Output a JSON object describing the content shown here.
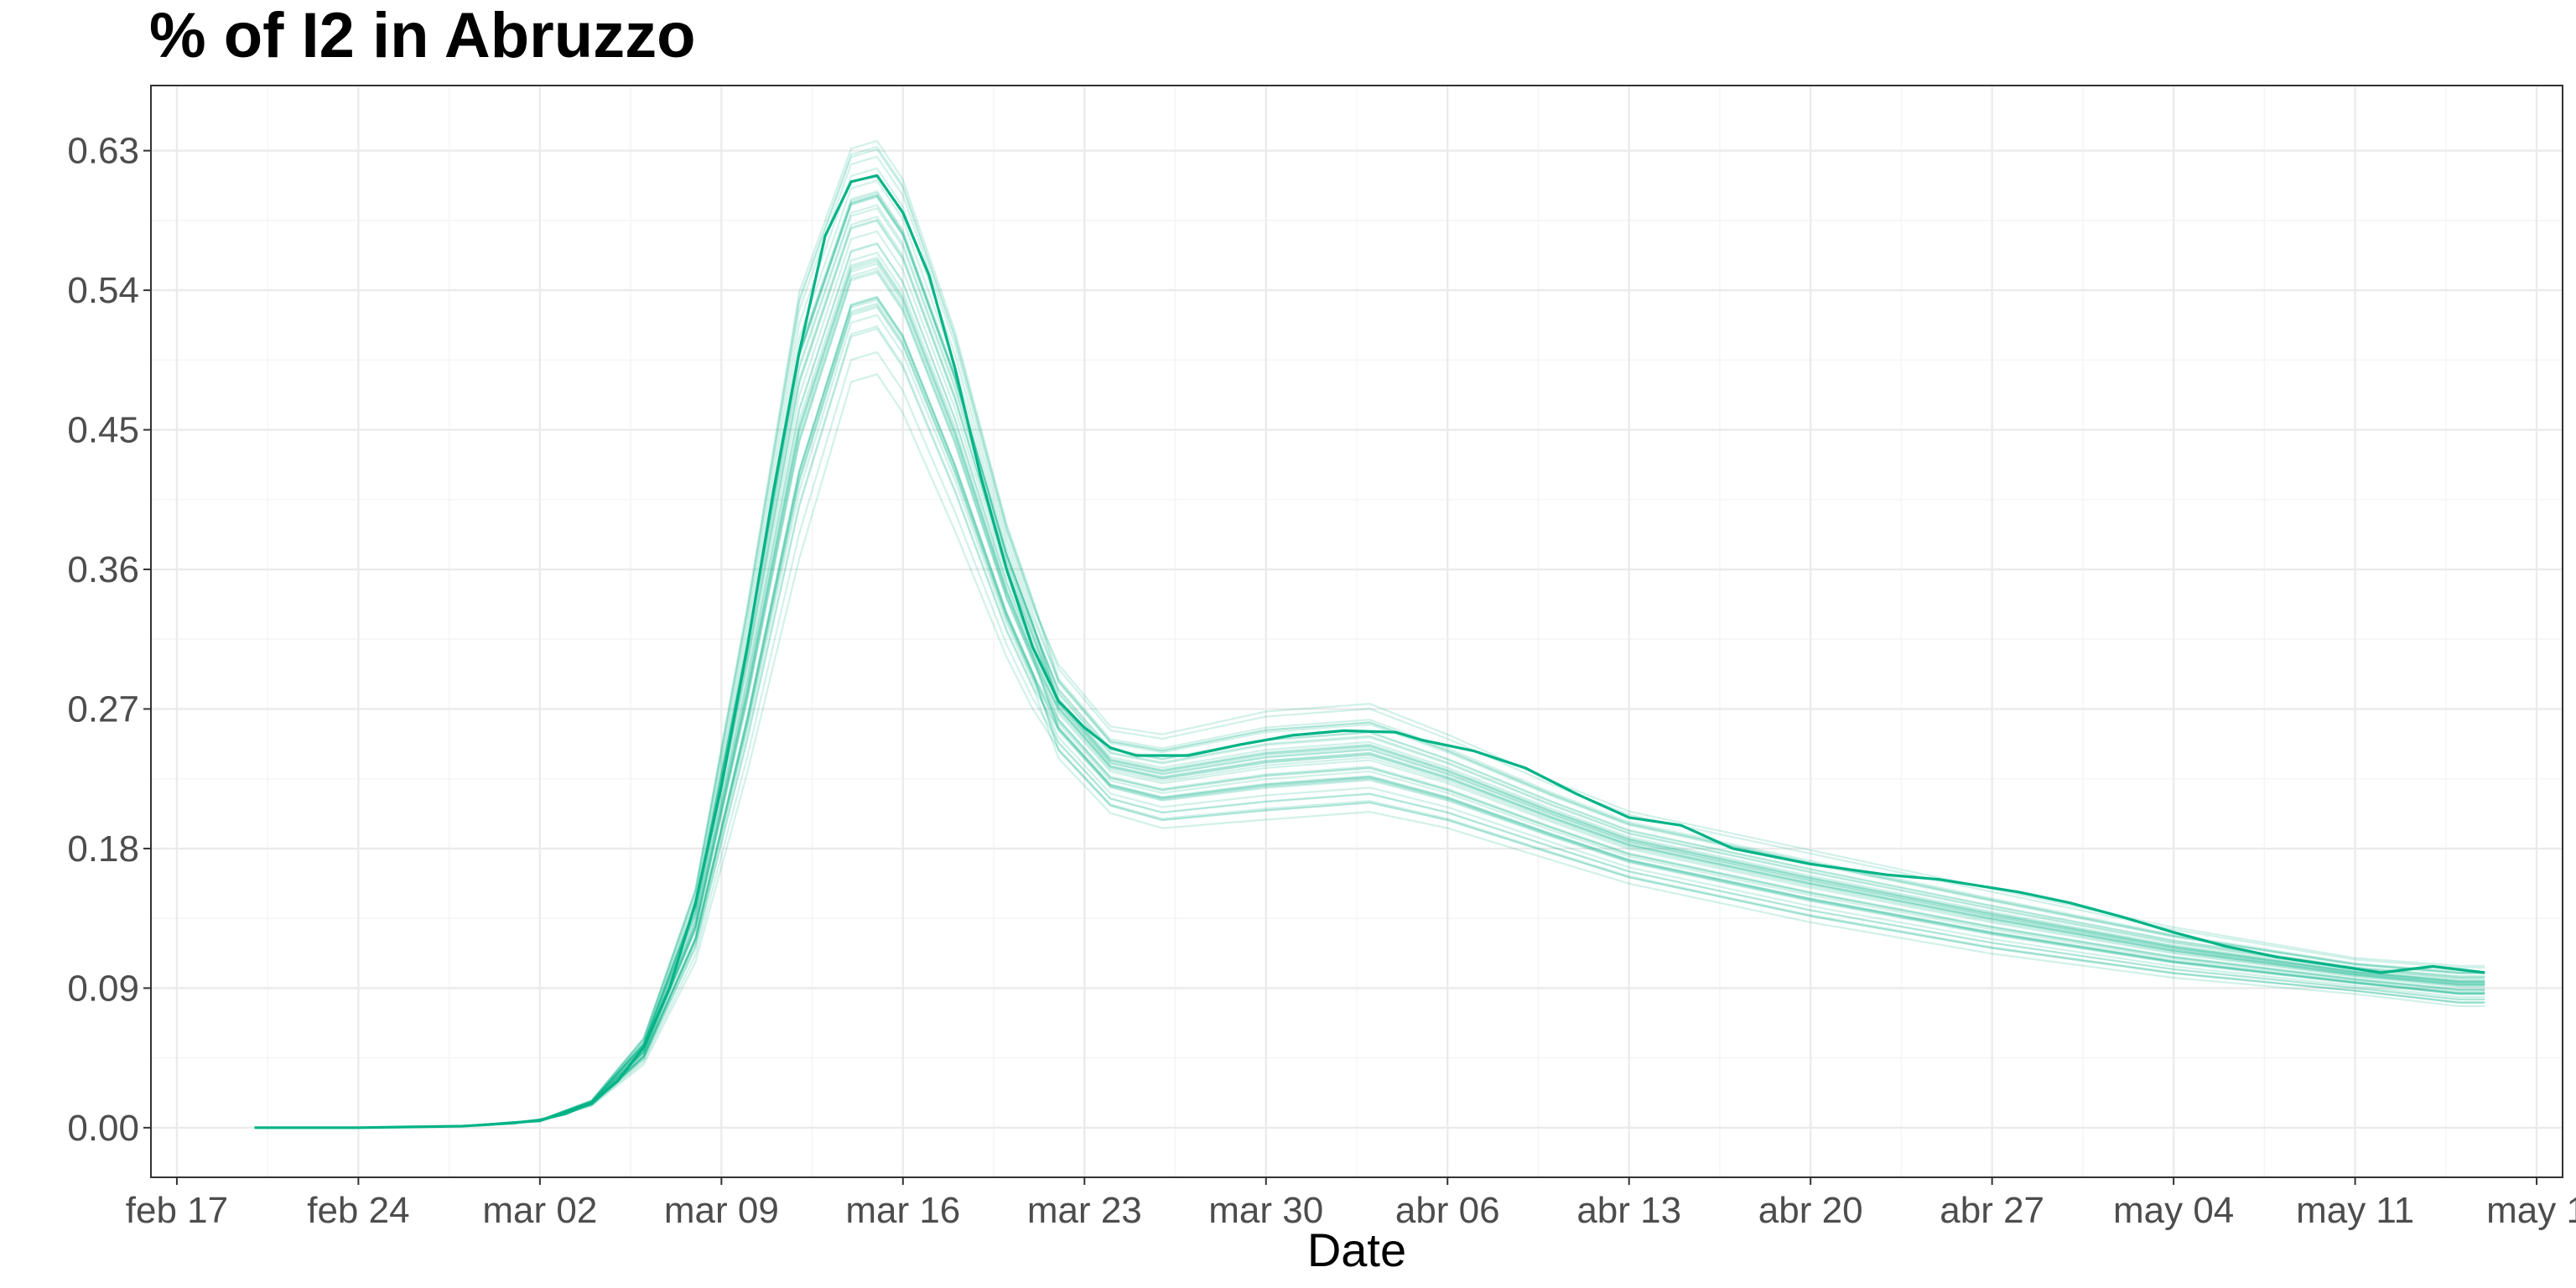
{
  "chart_data": {
    "type": "line",
    "title": "% of I2 in  Abruzzo",
    "xlabel": "Date",
    "ylabel": "",
    "x_axis": {
      "type": "date",
      "range": [
        "2020-02-16",
        "2020-05-19"
      ],
      "tick_labels": [
        "feb 17",
        "feb 24",
        "mar 02",
        "mar 09",
        "mar 16",
        "mar 23",
        "mar 30",
        "abr 06",
        "abr 13",
        "abr 20",
        "abr 27",
        "may 04",
        "may 11",
        "may 1"
      ],
      "tick_dates": [
        "2020-02-17",
        "2020-02-24",
        "2020-03-02",
        "2020-03-09",
        "2020-03-16",
        "2020-03-23",
        "2020-03-30",
        "2020-04-06",
        "2020-04-13",
        "2020-04-20",
        "2020-04-27",
        "2020-05-04",
        "2020-05-11",
        "2020-05-18"
      ]
    },
    "y_axis": {
      "range": [
        -0.032,
        0.672
      ],
      "ticks": [
        0.0,
        0.09,
        0.18,
        0.27,
        0.36,
        0.45,
        0.54,
        0.63
      ],
      "tick_labels": [
        "0.00",
        "0.09",
        "0.18",
        "0.27",
        "0.36",
        "0.45",
        "0.54",
        "0.63"
      ]
    },
    "grid": true,
    "legend": "none",
    "colors": {
      "series": "#00b386",
      "grid_major": "#ebebeb",
      "grid_minor": "#f4f4f4",
      "panel_border": "#333333"
    },
    "ensemble_band": {
      "count": 40,
      "opacity": 0.18,
      "lower": [
        [
          "2020-02-20",
          0.0
        ],
        [
          "2020-02-24",
          0.0
        ],
        [
          "2020-02-28",
          0.001
        ],
        [
          "2020-03-02",
          0.004
        ],
        [
          "2020-03-04",
          0.014
        ],
        [
          "2020-03-06",
          0.04
        ],
        [
          "2020-03-08",
          0.105
        ],
        [
          "2020-03-10",
          0.225
        ],
        [
          "2020-03-12",
          0.36
        ],
        [
          "2020-03-14",
          0.475
        ],
        [
          "2020-03-15",
          0.48
        ],
        [
          "2020-03-16",
          0.455
        ],
        [
          "2020-03-18",
          0.38
        ],
        [
          "2020-03-20",
          0.3
        ],
        [
          "2020-03-22",
          0.235
        ],
        [
          "2020-03-24",
          0.2
        ],
        [
          "2020-03-26",
          0.19
        ],
        [
          "2020-03-30",
          0.195
        ],
        [
          "2020-04-03",
          0.2
        ],
        [
          "2020-04-06",
          0.19
        ],
        [
          "2020-04-10",
          0.17
        ],
        [
          "2020-04-13",
          0.155
        ],
        [
          "2020-04-20",
          0.13
        ],
        [
          "2020-04-27",
          0.11
        ],
        [
          "2020-05-04",
          0.095
        ],
        [
          "2020-05-11",
          0.085
        ],
        [
          "2020-05-15",
          0.077
        ]
      ],
      "upper": [
        [
          "2020-02-20",
          0.0
        ],
        [
          "2020-02-24",
          0.0
        ],
        [
          "2020-02-28",
          0.001
        ],
        [
          "2020-03-02",
          0.005
        ],
        [
          "2020-03-04",
          0.018
        ],
        [
          "2020-03-06",
          0.06
        ],
        [
          "2020-03-08",
          0.16
        ],
        [
          "2020-03-10",
          0.35
        ],
        [
          "2020-03-12",
          0.56
        ],
        [
          "2020-03-14",
          0.65
        ],
        [
          "2020-03-15",
          0.655
        ],
        [
          "2020-03-16",
          0.63
        ],
        [
          "2020-03-18",
          0.53
        ],
        [
          "2020-03-20",
          0.4
        ],
        [
          "2020-03-22",
          0.3
        ],
        [
          "2020-03-24",
          0.26
        ],
        [
          "2020-03-26",
          0.255
        ],
        [
          "2020-03-30",
          0.27
        ],
        [
          "2020-04-03",
          0.275
        ],
        [
          "2020-04-06",
          0.255
        ],
        [
          "2020-04-10",
          0.225
        ],
        [
          "2020-04-13",
          0.205
        ],
        [
          "2020-04-20",
          0.18
        ],
        [
          "2020-04-27",
          0.155
        ],
        [
          "2020-05-04",
          0.13
        ],
        [
          "2020-05-11",
          0.11
        ],
        [
          "2020-05-15",
          0.105
        ]
      ]
    },
    "series": [
      {
        "points": [
          [
            "2020-02-20",
            0.0
          ],
          [
            "2020-02-22",
            0.0
          ],
          [
            "2020-02-24",
            0.0
          ],
          [
            "2020-02-26",
            0.0005
          ],
          [
            "2020-02-28",
            0.001
          ],
          [
            "2020-03-01",
            0.003
          ],
          [
            "2020-03-02",
            0.005
          ],
          [
            "2020-03-03",
            0.009
          ],
          [
            "2020-03-04",
            0.016
          ],
          [
            "2020-03-05",
            0.03
          ],
          [
            "2020-03-06",
            0.052
          ],
          [
            "2020-03-07",
            0.09
          ],
          [
            "2020-03-08",
            0.145
          ],
          [
            "2020-03-09",
            0.22
          ],
          [
            "2020-03-10",
            0.31
          ],
          [
            "2020-03-11",
            0.41
          ],
          [
            "2020-03-12",
            0.5
          ],
          [
            "2020-03-13",
            0.575
          ],
          [
            "2020-03-14",
            0.61
          ],
          [
            "2020-03-15",
            0.614
          ],
          [
            "2020-03-16",
            0.59
          ],
          [
            "2020-03-17",
            0.55
          ],
          [
            "2020-03-18",
            0.49
          ],
          [
            "2020-03-19",
            0.42
          ],
          [
            "2020-03-20",
            0.36
          ],
          [
            "2020-03-21",
            0.31
          ],
          [
            "2020-03-22",
            0.275
          ],
          [
            "2020-03-23",
            0.258
          ],
          [
            "2020-03-24",
            0.245
          ],
          [
            "2020-03-25",
            0.24
          ],
          [
            "2020-03-27",
            0.24
          ],
          [
            "2020-03-29",
            0.247
          ],
          [
            "2020-03-31",
            0.253
          ],
          [
            "2020-04-02",
            0.256
          ],
          [
            "2020-04-04",
            0.255
          ],
          [
            "2020-04-05",
            0.25
          ],
          [
            "2020-04-07",
            0.243
          ],
          [
            "2020-04-09",
            0.232
          ],
          [
            "2020-04-11",
            0.215
          ],
          [
            "2020-04-13",
            0.2
          ],
          [
            "2020-04-15",
            0.195
          ],
          [
            "2020-04-17",
            0.18
          ],
          [
            "2020-04-20",
            0.17
          ],
          [
            "2020-04-23",
            0.163
          ],
          [
            "2020-04-25",
            0.16
          ],
          [
            "2020-04-28",
            0.152
          ],
          [
            "2020-04-30",
            0.145
          ],
          [
            "2020-05-02",
            0.136
          ],
          [
            "2020-05-04",
            0.126
          ],
          [
            "2020-05-06",
            0.117
          ],
          [
            "2020-05-08",
            0.11
          ],
          [
            "2020-05-10",
            0.105
          ],
          [
            "2020-05-12",
            0.1
          ],
          [
            "2020-05-14",
            0.104
          ],
          [
            "2020-05-16",
            0.1
          ]
        ]
      }
    ]
  }
}
